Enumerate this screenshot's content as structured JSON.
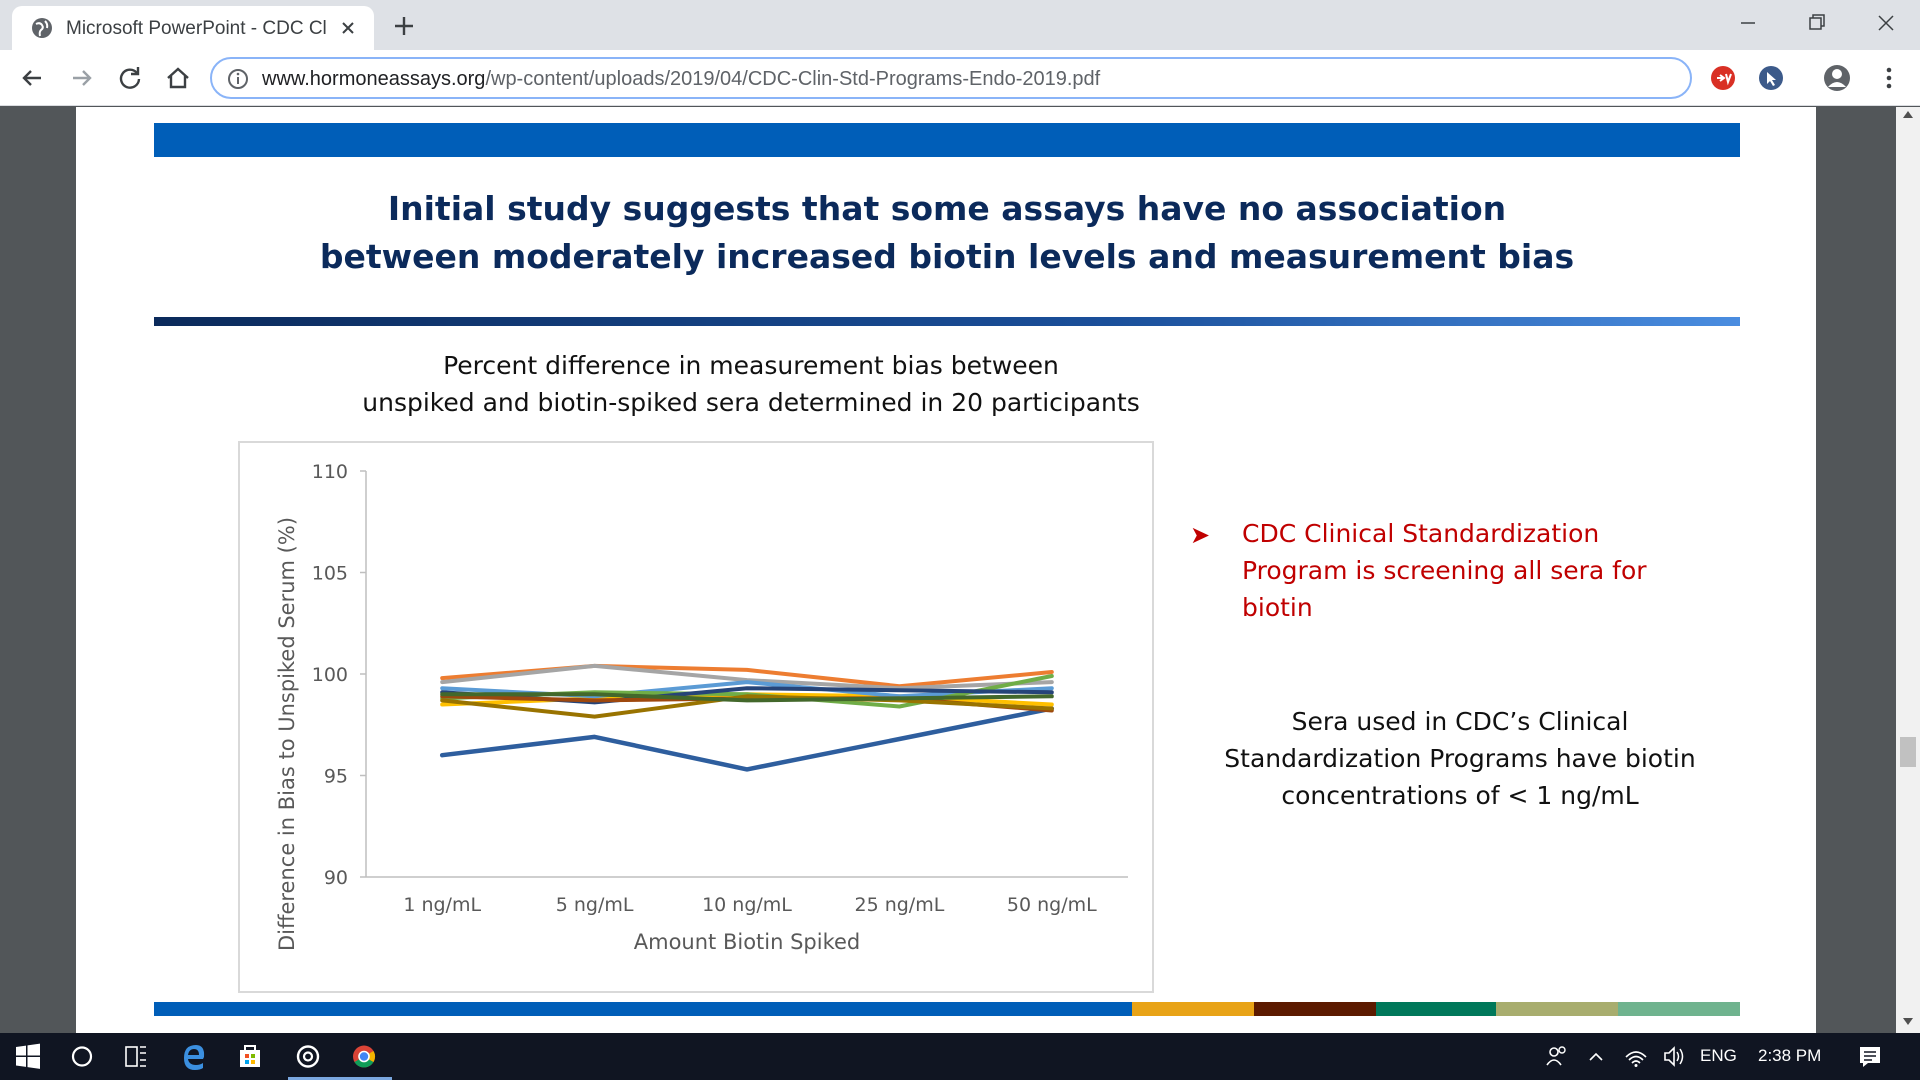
{
  "browser": {
    "tab_title": "Microsoft PowerPoint - CDC Clin",
    "url_host": "www.hormoneassays.org",
    "url_path": "/wp-content/uploads/2019/04/CDC-Clin-Std-Programs-Endo-2019.pdf"
  },
  "slide": {
    "title_line1": "Initial study suggests that some assays have no association",
    "title_line2": "between moderately increased biotin levels and measurement bias",
    "chart_title_line1": "Percent difference in measurement bias between",
    "chart_title_line2": "unspiked and biotin-spiked sera determined in 20 participants",
    "bullet_line1": "CDC Clinical Standardization",
    "bullet_line2": "Program is screening all sera for",
    "bullet_line3": "biotin",
    "note_line1": "Sera used in CDC’s Clinical",
    "note_line2": "Standardization Programs have biotin",
    "note_line3": "concentrations of < 1 ng/mL",
    "colors": {
      "header_blue": "#005eb8",
      "title_navy": "#0b2a5b",
      "bullet_red": "#c00000",
      "footer": [
        "#005eb8",
        "#e8a317",
        "#5c1a00",
        "#00785a",
        "#a8ad6e",
        "#6fb38e"
      ]
    }
  },
  "chart_data": {
    "type": "line",
    "title": "",
    "xlabel": "Amount Biotin Spiked",
    "ylabel": "Difference in Bias to Unspiked Serum (%)",
    "categories": [
      "1 ng/mL",
      "5 ng/mL",
      "10 ng/mL",
      "25 ng/mL",
      "50 ng/mL"
    ],
    "ylim": [
      90,
      110
    ],
    "yticks": [
      90,
      95,
      100,
      105,
      110
    ],
    "grid": false,
    "legend": "none",
    "series": [
      {
        "color": "#2e5e9e",
        "values": [
          96.0,
          96.9,
          95.3,
          96.8,
          98.3
        ]
      },
      {
        "color": "#ed7d31",
        "values": [
          99.8,
          100.4,
          100.2,
          99.4,
          100.1
        ]
      },
      {
        "color": "#a5a5a5",
        "values": [
          99.6,
          100.4,
          99.7,
          99.3,
          99.6
        ]
      },
      {
        "color": "#ffc000",
        "values": [
          98.5,
          98.8,
          99.0,
          98.9,
          98.5
        ]
      },
      {
        "color": "#5b9bd5",
        "values": [
          99.3,
          98.9,
          99.6,
          98.9,
          99.3
        ]
      },
      {
        "color": "#70ad47",
        "values": [
          98.8,
          99.1,
          99.0,
          98.4,
          99.9
        ]
      },
      {
        "color": "#264478",
        "values": [
          99.1,
          98.6,
          99.3,
          99.2,
          99.1
        ]
      },
      {
        "color": "#9e480e",
        "values": [
          98.9,
          98.7,
          98.8,
          98.8,
          98.2
        ]
      },
      {
        "color": "#997300",
        "values": [
          98.7,
          97.9,
          98.9,
          98.7,
          98.3
        ]
      },
      {
        "color": "#43682b",
        "values": [
          99.0,
          99.0,
          98.7,
          98.8,
          98.9
        ]
      }
    ]
  },
  "taskbar": {
    "lang": "ENG",
    "time": "2:38 PM"
  }
}
